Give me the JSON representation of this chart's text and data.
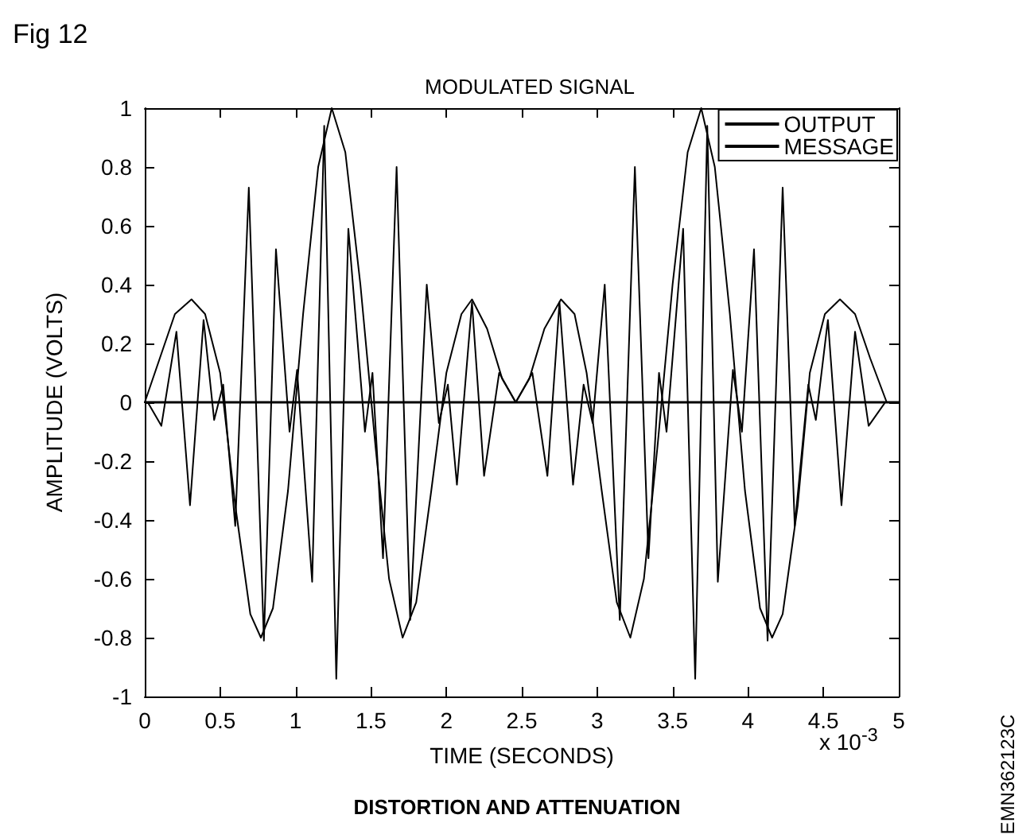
{
  "chart_data": {
    "type": "line",
    "title": "MODULATED SIGNAL",
    "xlabel": "TIME (SECONDS)",
    "ylabel": "AMPLITUDE (VOLTS)",
    "annotations": [
      "Fig 12",
      "x 10$^{-3}$",
      "DISTORTION AND ATTENUATION",
      "EMN362123C"
    ],
    "xlim": [
      0,
      5
    ],
    "xticks": [
      0,
      0.5,
      1,
      1.5,
      2,
      2.5,
      3,
      3.5,
      4,
      4.5,
      5
    ],
    "ylim": [
      -1,
      1
    ],
    "yticks": [
      -1,
      -0.8,
      -0.6,
      -0.4,
      -0.2,
      0,
      0.2,
      0.4,
      0.6,
      0.8,
      1
    ],
    "grid": false,
    "legend": "top right",
    "marker": "none",
    "line_style": "solid",
    "ref_lines": [
      {
        "axis": "y",
        "value": 0,
        "color": "#000000"
      }
    ],
    "series": [
      {
        "name": "OUTPUT",
        "color": "#000000",
        "x": [
          0,
          0.02,
          0.11,
          0.21,
          0.3,
          0.39,
          0.46,
          0.52,
          0.6,
          0.69,
          0.79,
          0.87,
          0.96,
          1.01,
          1.11,
          1.19,
          1.27,
          1.35,
          1.46,
          1.51,
          1.58,
          1.67,
          1.76,
          1.87,
          1.95,
          2.01,
          2.07,
          2.17,
          2.25,
          2.35,
          2.46,
          2.57,
          2.67,
          2.75,
          2.84,
          2.91,
          2.97,
          3.05,
          3.15,
          3.25,
          3.34,
          3.41,
          3.46,
          3.57,
          3.65,
          3.73,
          3.8,
          3.9,
          3.96,
          4.04,
          4.13,
          4.23,
          4.31,
          4.4,
          4.45,
          4.53,
          4.62,
          4.71,
          4.8,
          4.91,
          5
        ],
        "values": [
          0,
          0,
          -0.08,
          0.24,
          -0.35,
          0.28,
          -0.06,
          0.06,
          -0.42,
          0.73,
          -0.81,
          0.52,
          -0.1,
          0.11,
          -0.61,
          0.94,
          -0.94,
          0.59,
          -0.1,
          0.1,
          -0.53,
          0.8,
          -0.74,
          0.4,
          -0.07,
          0.06,
          -0.28,
          0.34,
          -0.25,
          0.1,
          0,
          0.1,
          -0.25,
          0.34,
          -0.28,
          0.06,
          -0.07,
          0.4,
          -0.74,
          0.8,
          -0.53,
          0.1,
          -0.1,
          0.59,
          -0.94,
          0.94,
          -0.61,
          0.11,
          -0.1,
          0.52,
          -0.81,
          0.73,
          -0.42,
          0.06,
          -0.06,
          0.28,
          -0.35,
          0.24,
          -0.08,
          0,
          0
        ]
      },
      {
        "name": "MESSAGE",
        "color": "#000000",
        "x": [
          0,
          0.1,
          0.2,
          0.31,
          0.4,
          0.5,
          0.6,
          0.7,
          0.77,
          0.85,
          0.95,
          1.05,
          1.15,
          1.24,
          1.33,
          1.43,
          1.53,
          1.62,
          1.71,
          1.8,
          1.9,
          2,
          2.1,
          2.17,
          2.27,
          2.37,
          2.46,
          2.55,
          2.65,
          2.76,
          2.85,
          2.93,
          3.03,
          3.13,
          3.22,
          3.31,
          3.4,
          3.5,
          3.6,
          3.69,
          3.78,
          3.88,
          3.98,
          4.08,
          4.16,
          4.23,
          4.33,
          4.41,
          4.51,
          4.61,
          4.71,
          4.81,
          4.92,
          5
        ],
        "values": [
          0,
          0.15,
          0.3,
          0.35,
          0.3,
          0.1,
          -0.35,
          -0.72,
          -0.8,
          -0.7,
          -0.3,
          0.3,
          0.8,
          1,
          0.85,
          0.4,
          -0.15,
          -0.6,
          -0.8,
          -0.68,
          -0.3,
          0.1,
          0.3,
          0.35,
          0.25,
          0.08,
          0,
          0.08,
          0.25,
          0.35,
          0.3,
          0.1,
          -0.3,
          -0.68,
          -0.8,
          -0.6,
          -0.15,
          0.4,
          0.85,
          1,
          0.8,
          0.3,
          -0.3,
          -0.7,
          -0.8,
          -0.72,
          -0.35,
          0.1,
          0.3,
          0.35,
          0.3,
          0.15,
          0,
          0
        ]
      }
    ]
  }
}
